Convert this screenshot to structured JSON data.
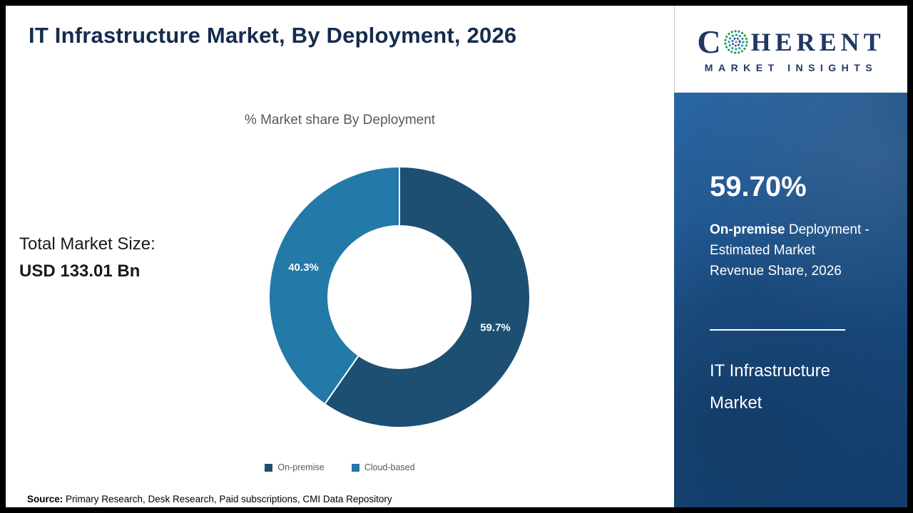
{
  "header": {
    "title": "IT Infrastructure Market, By Deployment, 2026"
  },
  "logo": {
    "line1_prefix": "C",
    "line1_suffix": "HERENT",
    "line2": "MARKET INSIGHTS"
  },
  "left_panel": {
    "total_label": "Total Market Size:",
    "total_value": "USD 133.01 Bn"
  },
  "chart_data": {
    "type": "pie",
    "donut": true,
    "title": "% Market share By Deployment",
    "categories": [
      "On-premise",
      "Cloud-based"
    ],
    "values": [
      59.7,
      40.3
    ],
    "labels": [
      "59.7%",
      "40.3%"
    ],
    "colors": [
      "#1d4f72",
      "#2379a7"
    ],
    "legend_position": "bottom"
  },
  "right_panel": {
    "stat_value": "59.70%",
    "desc_bold": "On-premise",
    "desc_line1_rest": " Deployment -",
    "desc_line2": "Estimated Market",
    "desc_line3": "Revenue Share, 2026",
    "market_line1": "IT Infrastructure",
    "market_line2": "Market",
    "bg_color": "#1b4f86"
  },
  "footer": {
    "label": "Source:",
    "text": " Primary Research, Desk Research, Paid subscriptions, CMI Data Repository"
  }
}
